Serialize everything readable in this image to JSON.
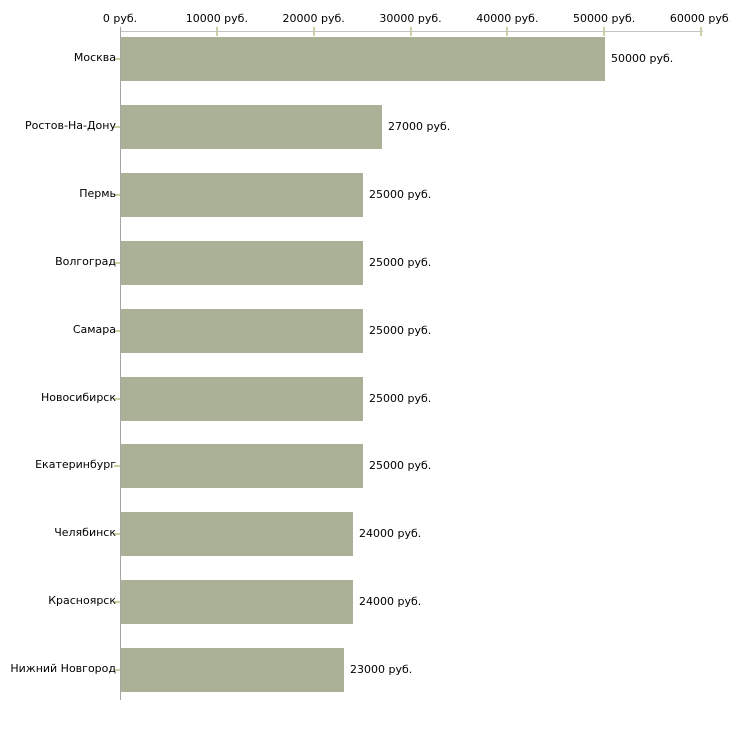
{
  "chart_data": {
    "type": "bar",
    "orientation": "horizontal",
    "title": "",
    "xlabel": "",
    "ylabel": "",
    "grid": false,
    "legend_position": "none",
    "xlim": [
      0,
      60000
    ],
    "x_tick_values": [
      0,
      10000,
      20000,
      30000,
      40000,
      50000,
      60000
    ],
    "x_tick_labels": [
      "0 руб.",
      "10000 руб.",
      "20000 руб.",
      "30000 руб.",
      "40000 руб.",
      "50000 руб.",
      "60000 руб."
    ],
    "categories": [
      "Москва",
      "Ростов-На-Дону",
      "Пермь",
      "Волгоград",
      "Самара",
      "Новосибирск",
      "Екатеринбург",
      "Челябинск",
      "Красноярск",
      "Нижний Новгород"
    ],
    "values": [
      50000,
      27000,
      25000,
      25000,
      25000,
      25000,
      25000,
      24000,
      24000,
      23000
    ],
    "value_labels": [
      "50000 руб.",
      "27000 руб.",
      "25000 руб.",
      "25000 руб.",
      "25000 руб.",
      "25000 руб.",
      "25000 руб.",
      "24000 руб.",
      "24000 руб.",
      "23000 руб."
    ],
    "colors": {
      "bar": "#abb196",
      "x_axis_line": "#c3c3c3",
      "y_axis_line": "#a6a6a6",
      "tick_mark": "#cfcfa4",
      "text": "#000000",
      "background": "#ffffff"
    }
  }
}
